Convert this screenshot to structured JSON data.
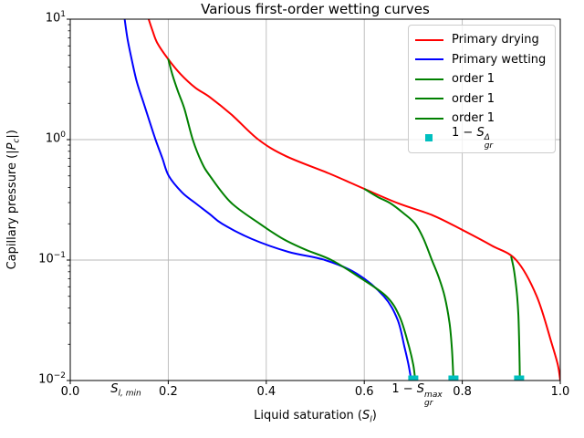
{
  "title": "Various first-order wetting curves",
  "colors": {
    "drying": "#ff0000",
    "wetting": "#0000ff",
    "scanning": "#008000",
    "marker": "#00bfbf",
    "grid": "#b8b8b8",
    "spine": "#000000",
    "legend_border": "#cccccc"
  },
  "axes": {
    "xlabel": {
      "pre": "Liquid saturation (",
      "base": "S",
      "sub": "l",
      "post": ")"
    },
    "ylabel": {
      "pre": "Capillary pressure (|",
      "base": "P",
      "sub": "c",
      "post": "|)"
    },
    "xtick_labels": [
      "0.0",
      "0.2",
      "0.4",
      "0.6",
      "0.8",
      "1.0"
    ],
    "xtick_values": [
      0.0,
      0.2,
      0.4,
      0.6,
      0.8,
      1.0
    ],
    "ytick_base": "10",
    "ytick_exponents": [
      "1",
      "0",
      "−1",
      "−2"
    ],
    "ytick_values": [
      10,
      1,
      0.1,
      0.01
    ]
  },
  "annotations": {
    "sl_min": {
      "base": "S",
      "sub": "l, min"
    },
    "one_minus_sgr_max": {
      "pre": "1 − ",
      "base": "S",
      "sup": "max",
      "sub": "gr"
    }
  },
  "legend": {
    "items": [
      {
        "type": "line",
        "color": "#ff0000",
        "label": {
          "text": "Primary drying"
        }
      },
      {
        "type": "line",
        "color": "#0000ff",
        "label": {
          "text": "Primary wetting"
        }
      },
      {
        "type": "line",
        "color": "#008000",
        "label": {
          "text": "order 1"
        }
      },
      {
        "type": "line",
        "color": "#008000",
        "label": {
          "text": "order 1"
        }
      },
      {
        "type": "line",
        "color": "#008000",
        "label": {
          "text": "order 1"
        }
      },
      {
        "type": "marker",
        "color": "#00bfbf",
        "label": {
          "pre": "1 − ",
          "base": "S",
          "sup": "Δ",
          "sub": "gr"
        }
      }
    ]
  },
  "chart_data": {
    "type": "line",
    "title": "Various first-order wetting curves",
    "xlabel": "Liquid saturation (S_l)",
    "ylabel": "Capillary pressure (|P_c|)",
    "xlim": [
      0.0,
      1.0
    ],
    "ylim": [
      0.01,
      10
    ],
    "yscale": "log",
    "grid": true,
    "legend_position": "upper right",
    "series": [
      {
        "name": "Primary drying",
        "color": "#ff0000",
        "points": [
          [
            0.16,
            10
          ],
          [
            0.168,
            8.0
          ],
          [
            0.178,
            6.3
          ],
          [
            0.2,
            4.65
          ],
          [
            0.225,
            3.5
          ],
          [
            0.255,
            2.7
          ],
          [
            0.285,
            2.25
          ],
          [
            0.33,
            1.6
          ],
          [
            0.384,
            1.0
          ],
          [
            0.44,
            0.73
          ],
          [
            0.53,
            0.52
          ],
          [
            0.6,
            0.39
          ],
          [
            0.67,
            0.295
          ],
          [
            0.74,
            0.235
          ],
          [
            0.8,
            0.178
          ],
          [
            0.86,
            0.132
          ],
          [
            0.91,
            0.1
          ],
          [
            0.952,
            0.05
          ],
          [
            0.983,
            0.02
          ],
          [
            0.995,
            0.0135
          ],
          [
            1.0,
            0.01
          ]
        ]
      },
      {
        "name": "Primary wetting",
        "color": "#0000ff",
        "points": [
          [
            0.111,
            10
          ],
          [
            0.117,
            6.8
          ],
          [
            0.126,
            4.5
          ],
          [
            0.136,
            3.0
          ],
          [
            0.15,
            2.0
          ],
          [
            0.161,
            1.45
          ],
          [
            0.174,
            1.0
          ],
          [
            0.188,
            0.7
          ],
          [
            0.201,
            0.5
          ],
          [
            0.228,
            0.365
          ],
          [
            0.254,
            0.3
          ],
          [
            0.285,
            0.24
          ],
          [
            0.31,
            0.2
          ],
          [
            0.37,
            0.15
          ],
          [
            0.445,
            0.117
          ],
          [
            0.52,
            0.1
          ],
          [
            0.585,
            0.077
          ],
          [
            0.64,
            0.05
          ],
          [
            0.668,
            0.032
          ],
          [
            0.682,
            0.019
          ],
          [
            0.69,
            0.0137
          ],
          [
            0.696,
            0.01
          ]
        ]
      },
      {
        "name": "order 1",
        "color": "#008000",
        "points": [
          [
            0.2,
            4.65
          ],
          [
            0.209,
            3.4
          ],
          [
            0.22,
            2.5
          ],
          [
            0.233,
            1.8
          ],
          [
            0.25,
            1.0
          ],
          [
            0.268,
            0.65
          ],
          [
            0.285,
            0.5
          ],
          [
            0.328,
            0.3
          ],
          [
            0.387,
            0.2
          ],
          [
            0.434,
            0.15
          ],
          [
            0.48,
            0.122
          ],
          [
            0.533,
            0.1
          ],
          [
            0.59,
            0.072
          ],
          [
            0.645,
            0.05
          ],
          [
            0.672,
            0.034
          ],
          [
            0.69,
            0.02
          ],
          [
            0.7,
            0.0135
          ],
          [
            0.704,
            0.01
          ]
        ]
      },
      {
        "name": "order 1",
        "color": "#008000",
        "points": [
          [
            0.601,
            0.388
          ],
          [
            0.627,
            0.335
          ],
          [
            0.654,
            0.295
          ],
          [
            0.68,
            0.245
          ],
          [
            0.704,
            0.2
          ],
          [
            0.721,
            0.15
          ],
          [
            0.738,
            0.1
          ],
          [
            0.752,
            0.072
          ],
          [
            0.764,
            0.05
          ],
          [
            0.774,
            0.03
          ],
          [
            0.779,
            0.018
          ],
          [
            0.782,
            0.01
          ]
        ]
      },
      {
        "name": "order 1",
        "color": "#008000",
        "points": [
          [
            0.9,
            0.106
          ],
          [
            0.905,
            0.085
          ],
          [
            0.909,
            0.065
          ],
          [
            0.912,
            0.05
          ],
          [
            0.9145,
            0.035
          ],
          [
            0.916,
            0.022
          ],
          [
            0.917,
            0.014
          ],
          [
            0.9175,
            0.01
          ]
        ]
      }
    ],
    "markers": {
      "name": "1 - S_gr^Delta",
      "color": "#00bfbf",
      "shape": "square",
      "pc": 0.01,
      "s_values": [
        0.7,
        0.782,
        0.916
      ]
    },
    "annotations": [
      {
        "text": "S_l,min",
        "x": 0.113,
        "below_axis": true
      },
      {
        "text": "1 - S_gr^max",
        "x": 0.705,
        "below_axis": true
      }
    ]
  }
}
